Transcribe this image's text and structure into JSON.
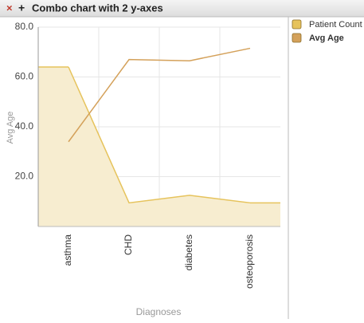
{
  "toolbar": {
    "close": "×",
    "add": "+"
  },
  "chart_data": {
    "type": "combo",
    "title": "Combo chart with 2 y-axes",
    "ylabel": "Avg Age",
    "xlabel": "Diagnoses",
    "categories": [
      "asthma",
      "CHD",
      "diabetes",
      "osteoporosis"
    ],
    "series": [
      {
        "name": "Patient Count",
        "type": "area",
        "color": "#e6c35c",
        "values": [
          64,
          9.5,
          12.5,
          9.5
        ]
      },
      {
        "name": "Avg Age",
        "type": "line",
        "color": "#d4a15a",
        "values": [
          34,
          67,
          66.5,
          71.5
        ]
      }
    ],
    "ylim": [
      0,
      80
    ],
    "yticks": [
      {
        "value": 20,
        "label": "20.0"
      },
      {
        "value": 40,
        "label": "40.0"
      },
      {
        "value": 60,
        "label": "60.0"
      },
      {
        "value": 80,
        "label": "80.0"
      }
    ],
    "grid": true
  }
}
